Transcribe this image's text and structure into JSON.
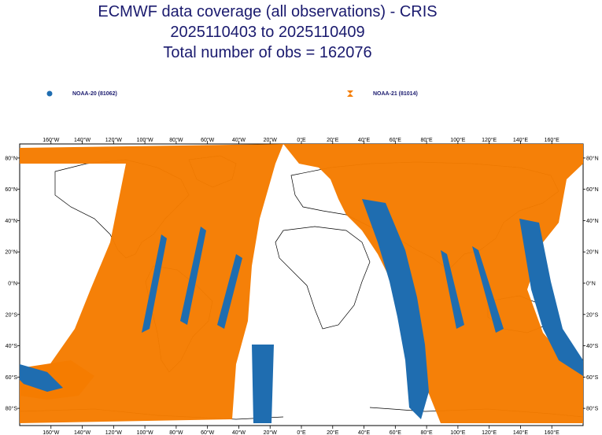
{
  "header": {
    "title_line1": "ECMWF data coverage (all observations) - CRIS",
    "title_line2": "2025110403 to 2025110409",
    "title_line3": "Total number of obs = 162076"
  },
  "legend": [
    {
      "label": "NOAA-20 (81062)",
      "color": "#1f6db0",
      "marker": "circle"
    },
    {
      "label": "NOAA-21 (81014)",
      "color": "#f57c00",
      "marker": "hourglass"
    }
  ],
  "map": {
    "lon_ticks": [
      "160°W",
      "140°W",
      "120°W",
      "100°W",
      "80°W",
      "60°W",
      "40°W",
      "20°W",
      "0°E",
      "20°E",
      "40°E",
      "60°E",
      "80°E",
      "100°E",
      "120°E",
      "140°E",
      "160°E"
    ],
    "lat_ticks": [
      "80°N",
      "60°N",
      "40°N",
      "20°N",
      "0°N",
      "20°S",
      "40°S",
      "60°S",
      "80°S"
    ],
    "colors": {
      "noaa20": "#1f6db0",
      "noaa21": "#f57c00",
      "coast": "#000000"
    }
  }
}
